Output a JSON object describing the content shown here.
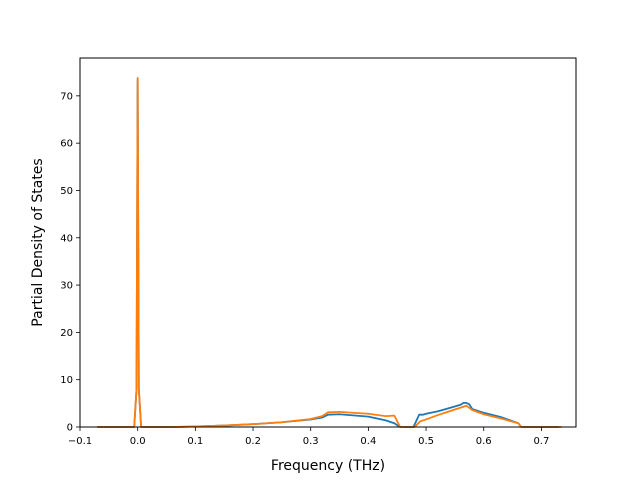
{
  "chart_data": {
    "type": "line",
    "xlabel": "Frequency (THz)",
    "ylabel": "Partial Density of States",
    "xlim": [
      -0.1,
      0.76
    ],
    "ylim": [
      0,
      78
    ],
    "grid": false,
    "xticks": [
      -0.1,
      0.0,
      0.1,
      0.2,
      0.3,
      0.4,
      0.5,
      0.6,
      0.7
    ],
    "xtick_labels": [
      "−0.1",
      "0.0",
      "0.1",
      "0.2",
      "0.3",
      "0.4",
      "0.5",
      "0.6",
      "0.7"
    ],
    "yticks": [
      0,
      10,
      20,
      30,
      40,
      50,
      60,
      70
    ],
    "ytick_labels": [
      "0",
      "10",
      "20",
      "30",
      "40",
      "50",
      "60",
      "70"
    ],
    "series": [
      {
        "color": "#1f77b4",
        "points": [
          [
            -0.07,
            0
          ],
          [
            -0.006,
            0
          ],
          [
            -0.002,
            8
          ],
          [
            0.0,
            73.5
          ],
          [
            0.002,
            8
          ],
          [
            0.006,
            0
          ],
          [
            0.06,
            0
          ],
          [
            0.1,
            0.1
          ],
          [
            0.15,
            0.3
          ],
          [
            0.2,
            0.6
          ],
          [
            0.25,
            1.0
          ],
          [
            0.3,
            1.6
          ],
          [
            0.32,
            2.0
          ],
          [
            0.33,
            2.6
          ],
          [
            0.35,
            2.7
          ],
          [
            0.4,
            2.2
          ],
          [
            0.43,
            1.4
          ],
          [
            0.445,
            0.8
          ],
          [
            0.455,
            0
          ],
          [
            0.478,
            0
          ],
          [
            0.482,
            1.0
          ],
          [
            0.488,
            2.6
          ],
          [
            0.495,
            2.6
          ],
          [
            0.5,
            2.8
          ],
          [
            0.52,
            3.3
          ],
          [
            0.54,
            4.0
          ],
          [
            0.56,
            4.7
          ],
          [
            0.565,
            5.1
          ],
          [
            0.57,
            5.1
          ],
          [
            0.575,
            4.8
          ],
          [
            0.58,
            3.8
          ],
          [
            0.6,
            3.0
          ],
          [
            0.63,
            2.1
          ],
          [
            0.66,
            0.8
          ],
          [
            0.665,
            0
          ],
          [
            0.73,
            0
          ]
        ]
      },
      {
        "color": "#ff7f0e",
        "points": [
          [
            -0.07,
            0
          ],
          [
            -0.006,
            0
          ],
          [
            -0.002,
            8
          ],
          [
            0.0,
            73.8
          ],
          [
            0.002,
            8
          ],
          [
            0.006,
            0
          ],
          [
            0.06,
            0
          ],
          [
            0.1,
            0.1
          ],
          [
            0.15,
            0.3
          ],
          [
            0.2,
            0.6
          ],
          [
            0.25,
            1.0
          ],
          [
            0.3,
            1.7
          ],
          [
            0.32,
            2.3
          ],
          [
            0.33,
            3.1
          ],
          [
            0.35,
            3.2
          ],
          [
            0.4,
            2.8
          ],
          [
            0.43,
            2.3
          ],
          [
            0.445,
            2.4
          ],
          [
            0.455,
            0
          ],
          [
            0.48,
            0
          ],
          [
            0.49,
            1.2
          ],
          [
            0.5,
            1.6
          ],
          [
            0.52,
            2.5
          ],
          [
            0.54,
            3.3
          ],
          [
            0.56,
            4.1
          ],
          [
            0.57,
            4.5
          ],
          [
            0.58,
            3.6
          ],
          [
            0.6,
            2.7
          ],
          [
            0.63,
            1.8
          ],
          [
            0.66,
            0.8
          ],
          [
            0.665,
            0
          ],
          [
            0.735,
            0
          ]
        ]
      }
    ]
  }
}
